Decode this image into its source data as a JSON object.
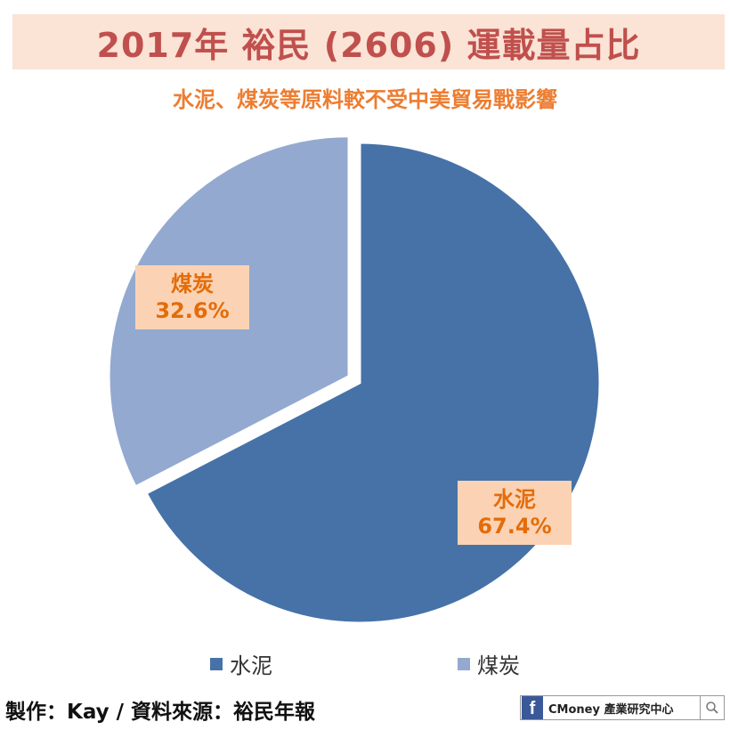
{
  "header": {
    "title": "2017年 裕民 (2606) 運載量占比",
    "subtitle": "水泥、煤炭等原料較不受中美貿易戰影響"
  },
  "chart_data": {
    "type": "pie",
    "title": "2017年 裕民 (2606) 運載量占比",
    "subtitle": "水泥、煤炭等原料較不受中美貿易戰影響",
    "legend_position": "bottom",
    "slices": [
      {
        "name": "水泥",
        "value": 67.4,
        "label": "67.4%",
        "color": "#4672a8"
      },
      {
        "name": "煤炭",
        "value": 32.6,
        "label": "32.6%",
        "color": "#93a9d0"
      }
    ]
  },
  "footer": {
    "credit": "製作：Kay / 資料來源：裕民年報",
    "brand_name": "CMoney 產業研究中心",
    "fb_glyph": "f"
  },
  "colors": {
    "title": "#c0504d",
    "subtitle": "#ed7d31",
    "label_bg": "#fbd3b4",
    "label_text": "#e46c0a"
  }
}
